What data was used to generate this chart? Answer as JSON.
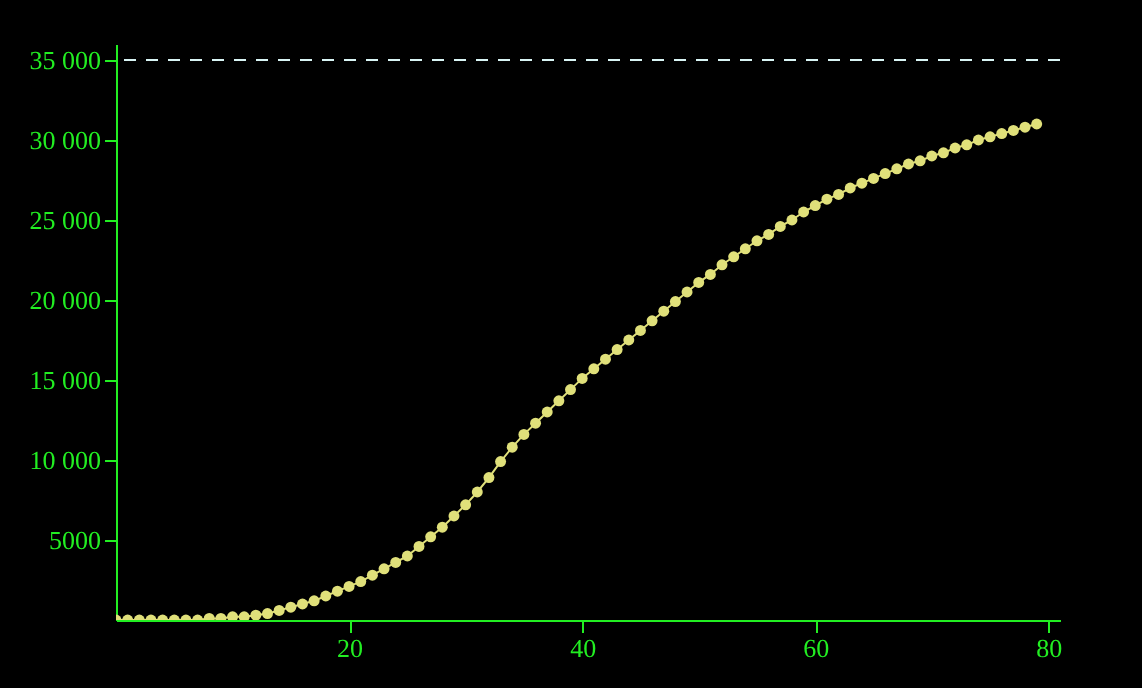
{
  "chart_data": {
    "type": "line",
    "x": [
      0,
      1,
      2,
      3,
      4,
      5,
      6,
      7,
      8,
      9,
      10,
      11,
      12,
      13,
      14,
      15,
      16,
      17,
      18,
      19,
      20,
      21,
      22,
      23,
      24,
      25,
      26,
      27,
      28,
      29,
      30,
      31,
      32,
      33,
      34,
      35,
      36,
      37,
      38,
      39,
      40,
      41,
      42,
      43,
      44,
      45,
      46,
      47,
      48,
      49,
      50,
      51,
      52,
      53,
      54,
      55,
      56,
      57,
      58,
      59,
      60,
      61,
      62,
      63,
      64,
      65,
      66,
      67,
      68,
      69,
      70,
      71,
      72,
      73,
      74,
      75,
      76,
      77,
      78,
      79
    ],
    "series": [
      {
        "color": "#e0e07a",
        "values": [
          0,
          0,
          0,
          0,
          0,
          0,
          0,
          0,
          100,
          100,
          200,
          200,
          300,
          400,
          600,
          800,
          1000,
          1200,
          1500,
          1800,
          2100,
          2400,
          2800,
          3200,
          3600,
          4000,
          4600,
          5200,
          5800,
          6500,
          7200,
          8000,
          8900,
          9900,
          10800,
          11600,
          12300,
          13000,
          13700,
          14400,
          15100,
          15700,
          16300,
          16900,
          17500,
          18100,
          18700,
          19300,
          19900,
          20500,
          21100,
          21600,
          22200,
          22700,
          23200,
          23700,
          24100,
          24600,
          25000,
          25500,
          25900,
          26300,
          26600,
          27000,
          27300,
          27600,
          27900,
          28200,
          28500,
          28700,
          29000,
          29200,
          29500,
          29700,
          30000,
          30200,
          30400,
          30600,
          30800,
          31000
        ]
      }
    ],
    "xlim": [
      0,
      81
    ],
    "xticks": [
      20,
      40,
      60,
      80
    ],
    "ylim": [
      0,
      36000
    ],
    "yticks": [
      5000,
      {
        "value": 10000,
        "label": "10 000"
      },
      {
        "value": 15000,
        "label": "15 000"
      },
      {
        "value": 20000,
        "label": "20 000"
      },
      {
        "value": 25000,
        "label": "25 000"
      },
      {
        "value": 30000,
        "label": "30 000"
      },
      {
        "value": 35000,
        "label": "35 000"
      }
    ],
    "ref_lines": [
      {
        "axis": "y",
        "value": 35000,
        "color": "#d8f4f4",
        "line_style": "dashed"
      }
    ],
    "marker": "circle",
    "line_style": "solid",
    "grid": false
  }
}
